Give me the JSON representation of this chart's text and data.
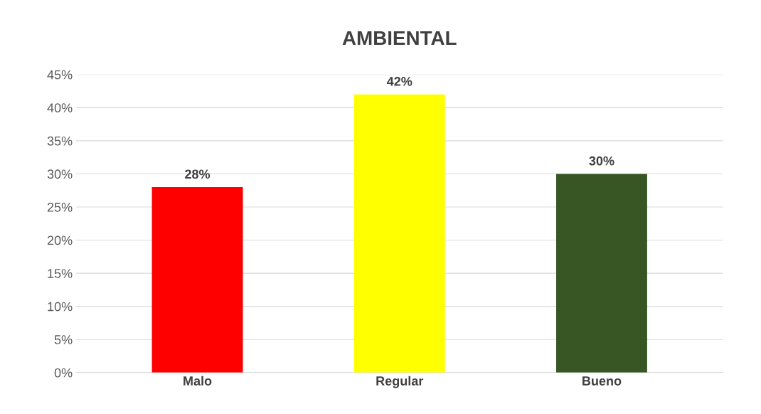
{
  "chart_data": {
    "type": "bar",
    "title": "AMBIENTAL",
    "categories": [
      "Malo",
      "Regular",
      "Bueno"
    ],
    "values": [
      28,
      42,
      30
    ],
    "colors": [
      "#ff0000",
      "#ffff00",
      "#375623"
    ],
    "value_labels": [
      "28%",
      "42%",
      "30%"
    ],
    "ylim": [
      0,
      45
    ],
    "yticks": [
      {
        "value": 0,
        "label": "0%"
      },
      {
        "value": 5,
        "label": "5%"
      },
      {
        "value": 10,
        "label": "10%"
      },
      {
        "value": 15,
        "label": "15%"
      },
      {
        "value": 20,
        "label": "20%"
      },
      {
        "value": 25,
        "label": "25%"
      },
      {
        "value": 30,
        "label": "30%"
      },
      {
        "value": 35,
        "label": "35%"
      },
      {
        "value": 40,
        "label": "40%"
      },
      {
        "value": 45,
        "label": "45%"
      }
    ],
    "grid": "y",
    "legend": false
  }
}
